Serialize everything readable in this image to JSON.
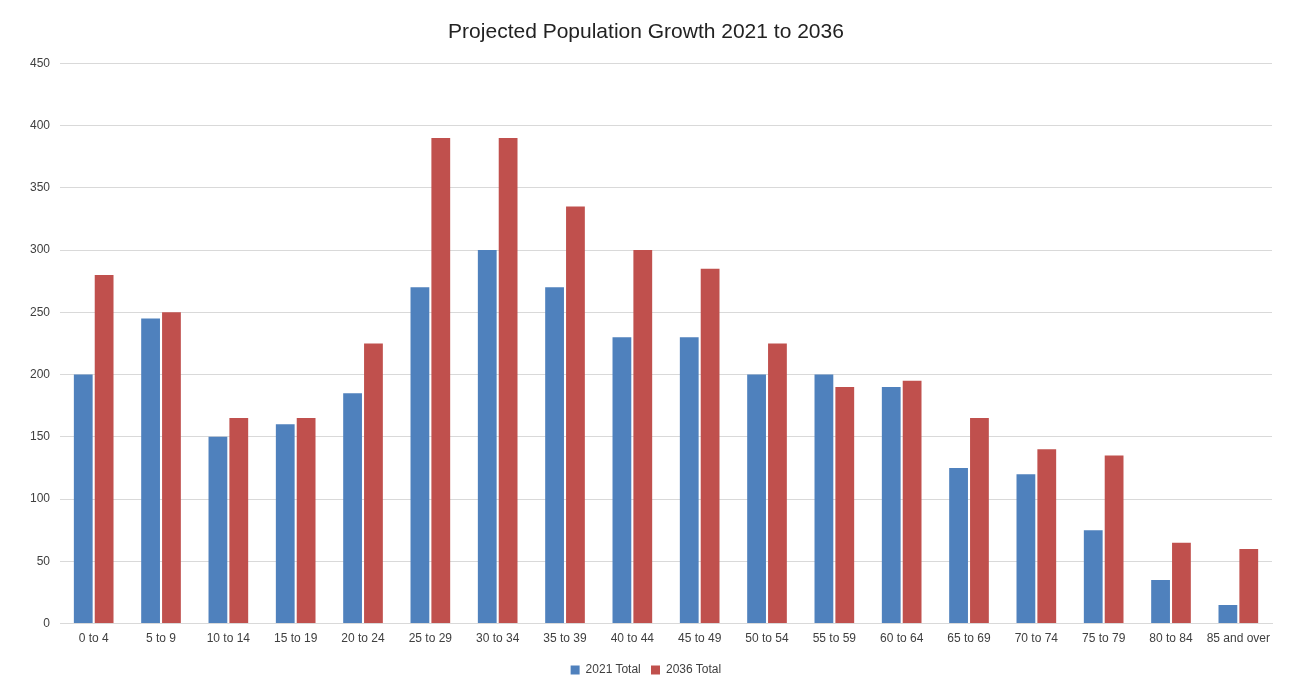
{
  "chart_data": {
    "type": "bar",
    "title": "Projected Population Growth 2021 to 2036",
    "categories": [
      "0 to 4",
      "5 to 9",
      "10 to 14",
      "15 to 19",
      "20 to 24",
      "25 to 29",
      "30 to 34",
      "35 to 39",
      "40 to 44",
      "45 to 49",
      "50 to 54",
      "55 to 59",
      "60 to 64",
      "65 to 69",
      "70 to 74",
      "75 to 79",
      "80 to 84",
      "85 and over"
    ],
    "series": [
      {
        "name": "2021 Total",
        "color": "#4f81bd",
        "values": [
          200,
          245,
          150,
          160,
          185,
          270,
          300,
          270,
          230,
          230,
          200,
          200,
          190,
          125,
          120,
          75,
          35,
          15
        ]
      },
      {
        "name": "2036 Total",
        "color": "#c0504d",
        "values": [
          280,
          250,
          165,
          165,
          225,
          390,
          390,
          335,
          300,
          285,
          225,
          190,
          195,
          165,
          140,
          135,
          65,
          60
        ]
      }
    ],
    "ylim": [
      0,
      450
    ],
    "yticks": [
      0,
      50,
      100,
      150,
      200,
      250,
      300,
      350,
      400,
      450
    ],
    "grid": "y",
    "legend": "bottom"
  }
}
